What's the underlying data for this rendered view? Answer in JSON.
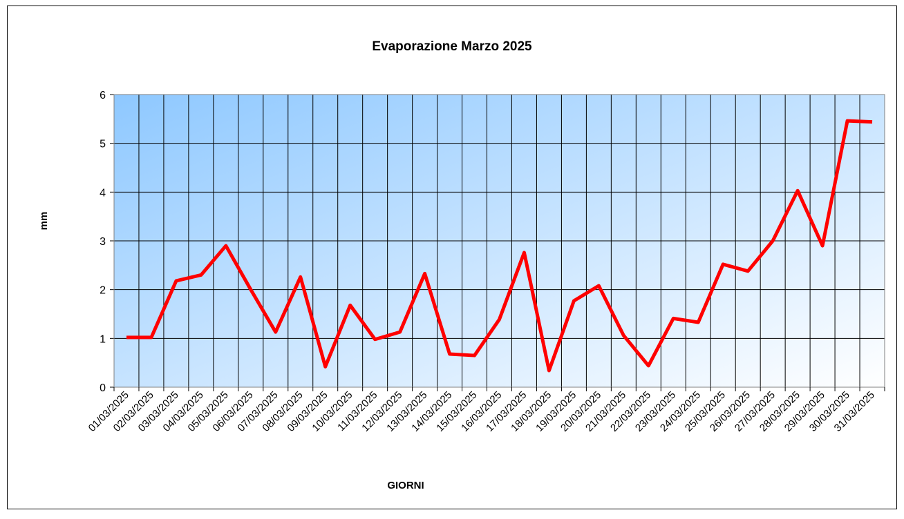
{
  "chart_data": {
    "type": "line",
    "title": "Evaporazione Marzo 2025",
    "y_label": "mm",
    "x_label": "GIORNI",
    "categories": [
      "01/03/2025",
      "02/03/2025",
      "03/03/2025",
      "04/03/2025",
      "05/03/2025",
      "06/03/2025",
      "07/03/2025",
      "08/03/2025",
      "09/03/2025",
      "10/03/2025",
      "11/03/2025",
      "12/03/2025",
      "13/03/2025",
      "14/03/2025",
      "15/03/2025",
      "16/03/2025",
      "17/03/2025",
      "18/03/2025",
      "19/03/2025",
      "20/03/2025",
      "21/03/2025",
      "22/03/2025",
      "23/03/2025",
      "24/03/2025",
      "25/03/2025",
      "26/03/2025",
      "27/03/2025",
      "28/03/2025",
      "29/03/2025",
      "30/03/2025",
      "31/03/2025"
    ],
    "series": [
      {
        "name": "Evaporazione",
        "color": "#ff0000",
        "values": [
          1.02,
          1.02,
          2.18,
          2.3,
          2.9,
          2.0,
          1.13,
          2.26,
          0.42,
          1.68,
          0.98,
          1.13,
          2.33,
          0.68,
          0.65,
          1.39,
          2.76,
          0.34,
          1.77,
          2.08,
          1.06,
          0.44,
          1.41,
          1.33,
          2.52,
          2.38,
          3.0,
          4.03,
          2.9,
          5.46,
          5.44
        ]
      }
    ],
    "ylim": [
      0,
      6
    ],
    "yticks": [
      0,
      1,
      2,
      3,
      4,
      5,
      6
    ],
    "grid": true
  }
}
